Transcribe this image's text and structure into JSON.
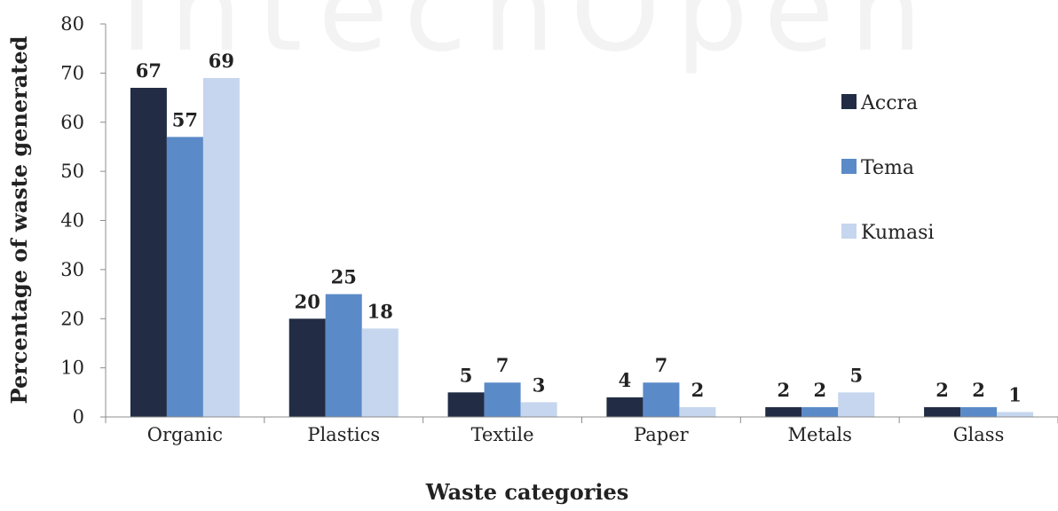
{
  "watermark": "IntechOpen",
  "chart_data": {
    "type": "bar",
    "categories": [
      "Organic",
      "Plastics",
      "Textile",
      "Paper",
      "Metals",
      "Glass"
    ],
    "series": [
      {
        "name": "Accra",
        "values": [
          67,
          20,
          5,
          4,
          2,
          2
        ],
        "color": "#222d45"
      },
      {
        "name": "Tema",
        "values": [
          57,
          25,
          7,
          7,
          2,
          2
        ],
        "color": "#5b8ac8"
      },
      {
        "name": "Kumasi",
        "values": [
          69,
          18,
          3,
          2,
          5,
          1
        ],
        "color": "#c5d6ee"
      }
    ],
    "xlabel": "Waste categories",
    "ylabel": "Percentage of waste generated",
    "ylim": [
      0,
      80
    ],
    "yticks": [
      0,
      10,
      20,
      30,
      40,
      50,
      60,
      70,
      80
    ],
    "data_labels": true,
    "grid": false,
    "legend": "right"
  }
}
